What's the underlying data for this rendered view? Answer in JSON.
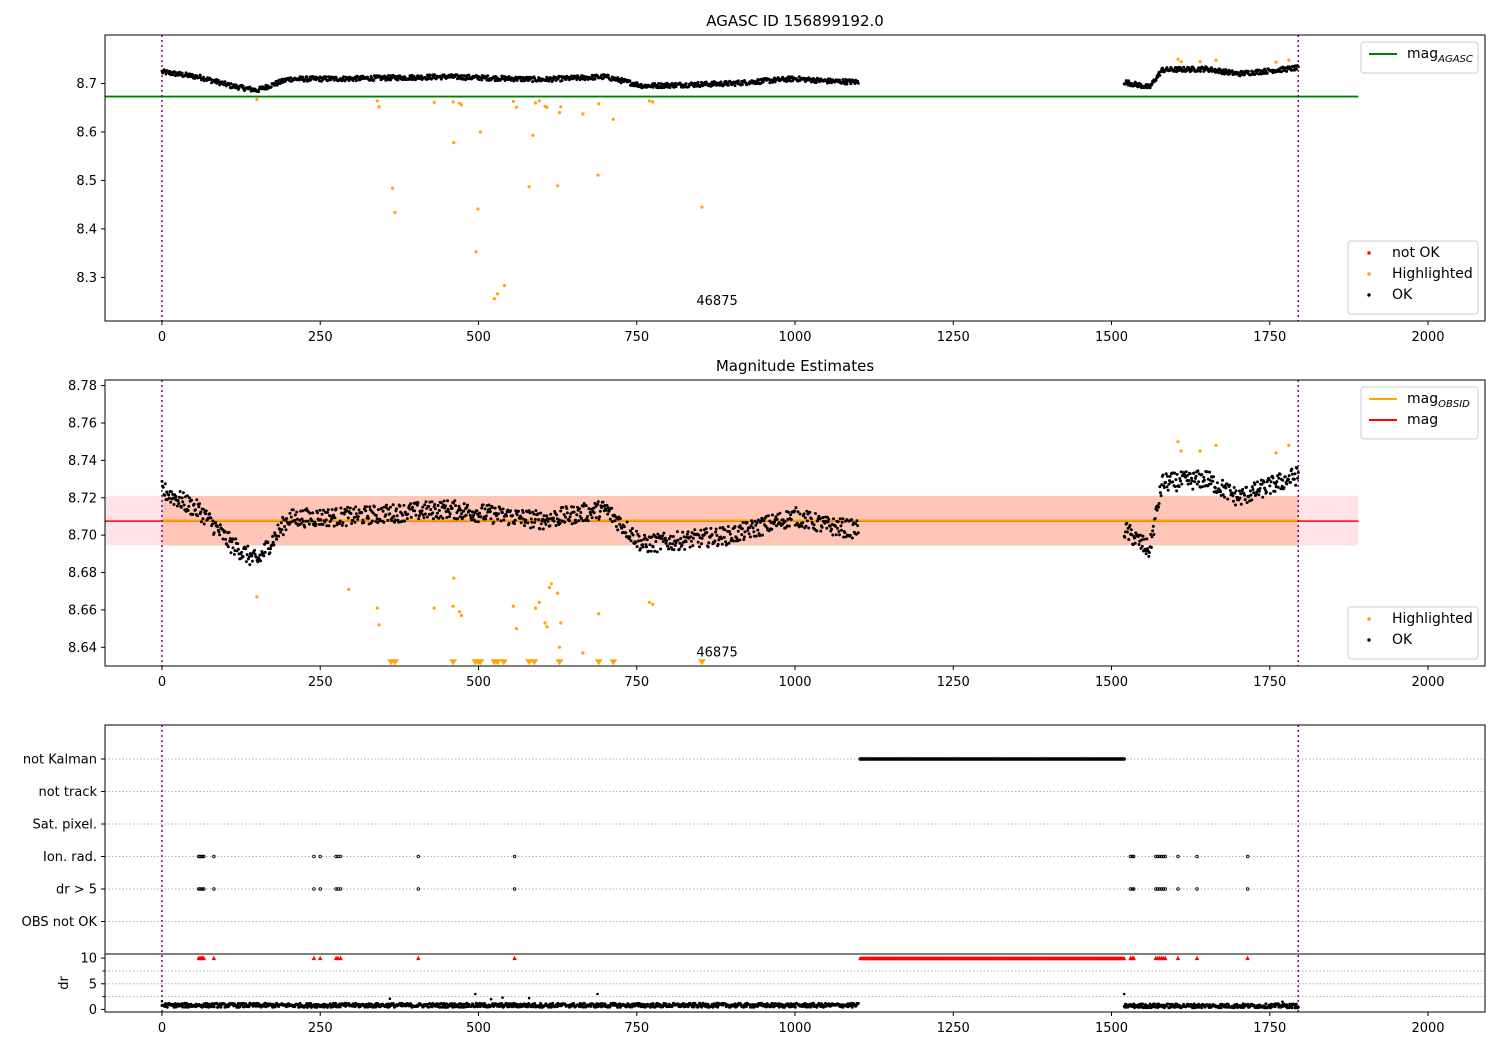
{
  "chart_data": [
    {
      "type": "scatter",
      "title": "AGASC ID 156899192.0",
      "xlim": [
        -90,
        2090
      ],
      "ylim": [
        8.21,
        8.8
      ],
      "xticks": [
        0,
        250,
        500,
        750,
        1000,
        1250,
        1500,
        1750,
        2000
      ],
      "yticks": [
        8.3,
        8.4,
        8.5,
        8.6,
        8.7
      ],
      "ytick_labels": [
        "8.3",
        "8.4",
        "8.5",
        "8.6",
        "8.7"
      ],
      "hlines": [
        {
          "name": "mag_AGASC",
          "y": 8.673,
          "x_range": [
            -90,
            1890
          ],
          "color": "#008000"
        }
      ],
      "vlines": [
        0,
        1795
      ],
      "annotation": {
        "text": "46875",
        "x": 860,
        "y": 8.227
      },
      "legends": [
        {
          "placement": "upper-right",
          "entries": [
            {
              "label_main": "mag",
              "label_sub": "AGASC",
              "kind": "line",
              "color": "#008000"
            }
          ]
        },
        {
          "placement": "lower-right",
          "entries": [
            {
              "label_main": "not OK",
              "label_sub": "",
              "kind": "dot",
              "color": "#ff0000"
            },
            {
              "label_main": "Highlighted",
              "label_sub": "",
              "kind": "dot",
              "color": "#ffa500"
            },
            {
              "label_main": "OK",
              "label_sub": "",
              "kind": "dot",
              "color": "#000000"
            }
          ]
        }
      ],
      "series": [
        {
          "name": "OK",
          "color": "#000000",
          "style": "points",
          "segments": [
            {
              "x_start": 0,
              "x_end": 1100,
              "count": 1040,
              "baseline": [
                [
                  0,
                  8.724
                ],
                [
                  60,
                  8.713
                ],
                [
                  110,
                  8.695
                ],
                [
                  150,
                  8.686
                ],
                [
                  200,
                  8.709
                ],
                [
                  300,
                  8.71
                ],
                [
                  450,
                  8.714
                ],
                [
                  600,
                  8.708
                ],
                [
                  700,
                  8.714
                ],
                [
                  760,
                  8.695
                ],
                [
                  900,
                  8.7
                ],
                [
                  1000,
                  8.71
                ],
                [
                  1050,
                  8.705
                ],
                [
                  1100,
                  8.703
                ]
              ],
              "jitter": 0.005
            },
            {
              "x_start": 1520,
              "x_end": 1795,
              "count": 270,
              "baseline": [
                [
                  1520,
                  8.703
                ],
                [
                  1560,
                  8.692
                ],
                [
                  1580,
                  8.728
                ],
                [
                  1650,
                  8.73
                ],
                [
                  1700,
                  8.72
                ],
                [
                  1795,
                  8.732
                ]
              ],
              "jitter": 0.005
            }
          ]
        },
        {
          "name": "Highlighted",
          "color": "#ffa500",
          "style": "points",
          "points": [
            [
              150,
              8.667
            ],
            [
              340,
              8.664
            ],
            [
              343,
              8.652
            ],
            [
              364,
              8.484
            ],
            [
              368,
              8.434
            ],
            [
              430,
              8.661
            ],
            [
              460,
              8.662
            ],
            [
              461,
              8.578
            ],
            [
              470,
              8.659
            ],
            [
              473,
              8.656
            ],
            [
              496,
              8.353
            ],
            [
              499,
              8.441
            ],
            [
              503,
              8.6
            ],
            [
              525,
              8.256
            ],
            [
              530,
              8.266
            ],
            [
              541,
              8.283
            ],
            [
              555,
              8.663
            ],
            [
              560,
              8.651
            ],
            [
              580,
              8.487
            ],
            [
              586,
              8.593
            ],
            [
              590,
              8.66
            ],
            [
              596,
              8.664
            ],
            [
              605,
              8.653
            ],
            [
              608,
              8.651
            ],
            [
              625,
              8.489
            ],
            [
              628,
              8.64
            ],
            [
              630,
              8.652
            ],
            [
              665,
              8.637
            ],
            [
              689,
              8.511
            ],
            [
              690,
              8.658
            ],
            [
              713,
              8.626
            ],
            [
              770,
              8.664
            ],
            [
              775,
              8.662
            ],
            [
              853,
              8.445
            ],
            [
              1605,
              8.75
            ],
            [
              1610,
              8.745
            ],
            [
              1640,
              8.745
            ],
            [
              1665,
              8.748
            ],
            [
              1760,
              8.744
            ],
            [
              1780,
              8.748
            ]
          ]
        }
      ]
    },
    {
      "type": "scatter",
      "title": "Magnitude Estimates",
      "xlim": [
        -90,
        2090
      ],
      "ylim": [
        8.63,
        8.783
      ],
      "xticks": [
        0,
        250,
        500,
        750,
        1000,
        1250,
        1500,
        1750,
        2000
      ],
      "yticks": [
        8.64,
        8.66,
        8.68,
        8.7,
        8.72,
        8.74,
        8.76,
        8.78
      ],
      "ytick_labels": [
        "8.64",
        "8.66",
        "8.68",
        "8.70",
        "8.72",
        "8.74",
        "8.76",
        "8.78"
      ],
      "hlines": [
        {
          "name": "mag",
          "y": 8.7075,
          "x_range": [
            -90,
            1890
          ],
          "color": "#ff0000",
          "band": [
            8.6945,
            8.721
          ],
          "band_color": "#ffc0cb"
        },
        {
          "name": "mag_OBSID",
          "y": 8.7078,
          "x_range": [
            0,
            1795
          ],
          "color": "#ffa500",
          "band": [
            8.6945,
            8.721
          ],
          "band_color": "#ffa07a"
        }
      ],
      "vlines": [
        0,
        1795
      ],
      "annotation": {
        "text": "46875",
        "x": 860,
        "y": 8.634
      },
      "lower_limit_markers": {
        "color": "#ffa500",
        "y": 8.632,
        "x": [
          362,
          368,
          460,
          495,
          500,
          503,
          525,
          530,
          540,
          580,
          588,
          628,
          690,
          713,
          853
        ]
      },
      "legends": [
        {
          "placement": "upper-right",
          "entries": [
            {
              "label_main": "mag",
              "label_sub": "OBSID",
              "kind": "line",
              "color": "#ffa500"
            },
            {
              "label_main": "mag",
              "label_sub": "",
              "kind": "line",
              "color": "#ff0000"
            }
          ]
        },
        {
          "placement": "lower-right",
          "entries": [
            {
              "label_main": "Highlighted",
              "label_sub": "",
              "kind": "dot",
              "color": "#ffa500"
            },
            {
              "label_main": "OK",
              "label_sub": "",
              "kind": "dot",
              "color": "#000000"
            }
          ]
        }
      ],
      "series": [
        {
          "name": "OK",
          "color": "#000000",
          "style": "points",
          "segments": [
            {
              "x_start": 0,
              "x_end": 1100,
              "count": 1040,
              "baseline": [
                [
                  0,
                  8.724
                ],
                [
                  60,
                  8.713
                ],
                [
                  110,
                  8.695
                ],
                [
                  150,
                  8.686
                ],
                [
                  200,
                  8.709
                ],
                [
                  300,
                  8.71
                ],
                [
                  450,
                  8.714
                ],
                [
                  600,
                  8.708
                ],
                [
                  700,
                  8.714
                ],
                [
                  760,
                  8.695
                ],
                [
                  900,
                  8.7
                ],
                [
                  1000,
                  8.71
                ],
                [
                  1050,
                  8.705
                ],
                [
                  1100,
                  8.703
                ]
              ],
              "jitter": 0.005
            },
            {
              "x_start": 1520,
              "x_end": 1795,
              "count": 270,
              "baseline": [
                [
                  1520,
                  8.703
                ],
                [
                  1560,
                  8.692
                ],
                [
                  1580,
                  8.728
                ],
                [
                  1650,
                  8.73
                ],
                [
                  1700,
                  8.72
                ],
                [
                  1795,
                  8.732
                ]
              ],
              "jitter": 0.005
            }
          ]
        },
        {
          "name": "Highlighted",
          "color": "#ffa500",
          "style": "points",
          "points": [
            [
              150,
              8.667
            ],
            [
              295,
              8.671
            ],
            [
              340,
              8.661
            ],
            [
              343,
              8.652
            ],
            [
              430,
              8.661
            ],
            [
              460,
              8.662
            ],
            [
              461,
              8.677
            ],
            [
              470,
              8.659
            ],
            [
              473,
              8.657
            ],
            [
              555,
              8.662
            ],
            [
              560,
              8.65
            ],
            [
              590,
              8.661
            ],
            [
              596,
              8.664
            ],
            [
              605,
              8.653
            ],
            [
              608,
              8.651
            ],
            [
              612,
              8.672
            ],
            [
              615,
              8.674
            ],
            [
              625,
              8.669
            ],
            [
              628,
              8.64
            ],
            [
              630,
              8.653
            ],
            [
              665,
              8.637
            ],
            [
              690,
              8.658
            ],
            [
              770,
              8.664
            ],
            [
              775,
              8.663
            ],
            [
              1605,
              8.75
            ],
            [
              1610,
              8.745
            ],
            [
              1640,
              8.745
            ],
            [
              1665,
              8.748
            ],
            [
              1760,
              8.744
            ],
            [
              1780,
              8.748
            ]
          ]
        }
      ]
    },
    {
      "type": "scatter",
      "title": "",
      "xlim": [
        -90,
        2090
      ],
      "xticks": [
        0,
        250,
        500,
        750,
        1000,
        1250,
        1500,
        1750,
        2000
      ],
      "vlines": [
        0,
        1795
      ],
      "flag_rows": [
        "not Kalman",
        "not track",
        "Sat. pixel.",
        "Ion. rad.",
        "dr > 5",
        "OBS not OK"
      ],
      "flags": {
        "not Kalman": {
          "ranges": [
            [
              1103,
              1520
            ]
          ],
          "points": []
        },
        "not track": {
          "ranges": [],
          "points": []
        },
        "Sat. pixel.": {
          "ranges": [],
          "points": []
        },
        "Ion. rad.": {
          "ranges": [],
          "points": [
            58,
            60,
            62,
            64,
            66,
            82,
            240,
            250,
            275,
            278,
            282,
            405,
            557,
            1530,
            1533,
            1535,
            1570,
            1573,
            1576,
            1579,
            1582,
            1585,
            1605,
            1635,
            1715
          ]
        },
        "dr > 5": {
          "ranges": [],
          "points": [
            58,
            60,
            62,
            64,
            66,
            82,
            240,
            250,
            275,
            278,
            282,
            405,
            557,
            1530,
            1533,
            1535,
            1570,
            1573,
            1576,
            1579,
            1582,
            1585,
            1605,
            1635,
            1715
          ]
        },
        "OBS not OK": {
          "ranges": [],
          "points": []
        }
      },
      "dr_subplot": {
        "ylabel": "dr",
        "ylim": [
          -0.5,
          10.8
        ],
        "yticks": [
          0,
          5,
          10
        ],
        "ytick_labels": [
          "0",
          "5",
          "10"
        ],
        "clip_value": 10,
        "clipped_marker_color": "#ff0000",
        "clipped_x": [
          58,
          60,
          62,
          64,
          66,
          82,
          240,
          250,
          275,
          278,
          282,
          405,
          557,
          1530,
          1533,
          1535,
          1570,
          1573,
          1576,
          1579,
          1582,
          1585,
          1605,
          1635,
          1715
        ],
        "clipped_ranges": [
          [
            1103,
            1520
          ]
        ],
        "series": {
          "segments": [
            {
              "x_start": 0,
              "x_end": 1100,
              "count": 1040,
              "level": 0.8,
              "jitter": 0.4
            },
            {
              "x_start": 1520,
              "x_end": 1795,
              "count": 270,
              "level": 0.7,
              "jitter": 0.4
            }
          ],
          "outliers": [
            [
              0,
              1.6
            ],
            [
              360,
              2.1
            ],
            [
              495,
              3.0
            ],
            [
              520,
              2.0
            ],
            [
              538,
              2.3
            ],
            [
              580,
              2.2
            ],
            [
              688,
              3.0
            ],
            [
              1520,
              3.0
            ],
            [
              1770,
              1.5
            ]
          ]
        }
      }
    }
  ]
}
